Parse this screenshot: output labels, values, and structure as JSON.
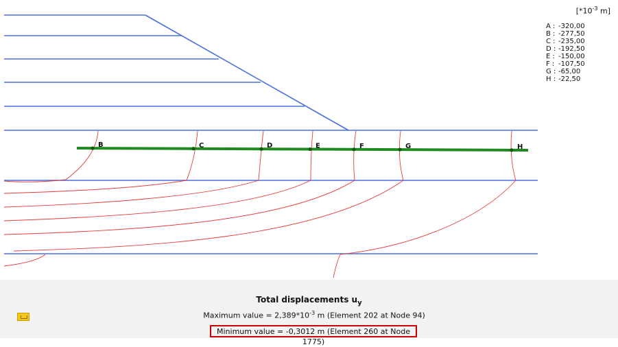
{
  "legend": {
    "unit": "[*10",
    "unit_exp": "-3",
    "unit_suffix": " m]",
    "entries": [
      {
        "key": "A :",
        "value": "-320,00"
      },
      {
        "key": "B :",
        "value": "-277,50"
      },
      {
        "key": "C :",
        "value": "-235,00"
      },
      {
        "key": "D :",
        "value": "-192,50"
      },
      {
        "key": "E :",
        "value": "-150,00"
      },
      {
        "key": "F :",
        "value": "-107,50"
      },
      {
        "key": "G :",
        "value": "-65,00"
      },
      {
        "key": "H :",
        "value": "-22,50"
      }
    ]
  },
  "section_points": [
    "B",
    "C",
    "D",
    "E",
    "F",
    "G",
    "H"
  ],
  "footer": {
    "title": "Total displacements u",
    "title_sub": "y",
    "max_prefix": "Maximum value = 2,389*10",
    "max_exp": "-3",
    "max_suffix": " m (Element 202 at Node 94)",
    "min_text": "Minimum value = -0,3012 m (Element 260 at Node 1775)"
  },
  "colors": {
    "layer_lines": "#4a6ee0",
    "contour_lines": "#e83a3a",
    "section_line": "#1f8a1f",
    "highlight_box": "#cc0000"
  },
  "icons": {
    "tool": "settings-icon"
  }
}
